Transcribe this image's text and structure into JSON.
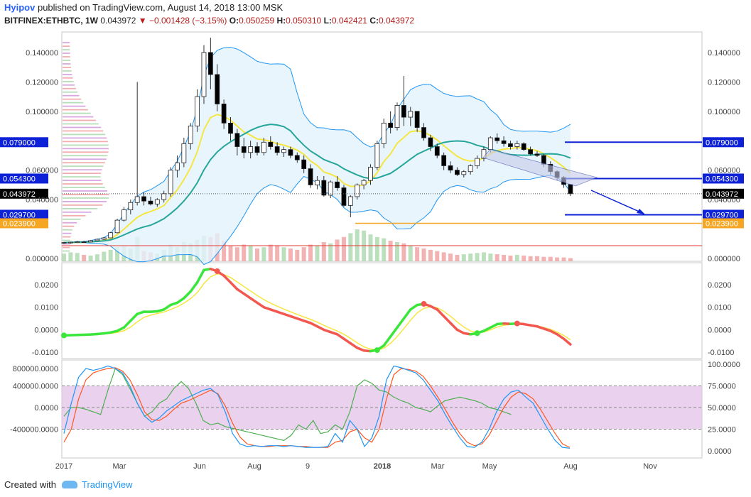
{
  "header": {
    "author": "Hyipov",
    "published": "published on TradingView.com, August 14, 2018 13:00 MSK",
    "symbol": "BITFINEX:ETHBTC, 1W",
    "last": "0.043972",
    "change": "−0.001428 (−3.15%)",
    "o_label": "O:",
    "o": "0.050259",
    "h_label": "H:",
    "h": "0.050310",
    "l_label": "L:",
    "l": "0.042421",
    "c_label": "C:",
    "c": "0.043972"
  },
  "footer": {
    "created": "Created with",
    "brand": "TradingView"
  },
  "colors": {
    "up": "#ffffff",
    "down": "#000000",
    "bb_fill": "#e3f2fd",
    "bb_line": "#2196f3",
    "ema_fast": "#f5e642",
    "ema_slow": "#26a69a",
    "level_blue": "#0d22d6",
    "level_orange": "#f5a623",
    "osc_up": "#39e639",
    "osc_down": "#f2584f",
    "osc_signal": "#f5e642",
    "stoch_band": "#e1bee7",
    "stoch_k": "#2196f3",
    "stoch_d": "#ff5722",
    "stoch_green": "#4caf50"
  },
  "chart_data": [
    {
      "type": "candlestick",
      "x_ticks": [
        "2017",
        "Mar",
        "Jun",
        "Aug",
        "9",
        "2018",
        "Mar",
        "May",
        "Aug",
        "Nov"
      ],
      "y_ticks": [
        "0.000000",
        "0.040000",
        "0.060000",
        "0.100000",
        "0.120000",
        "0.140000"
      ],
      "ylim": [
        0.0,
        0.152
      ],
      "candles": [
        [
          0.0105,
          0.0112,
          0.0098,
          0.0108
        ],
        [
          0.0108,
          0.0114,
          0.01,
          0.011
        ],
        [
          0.011,
          0.0118,
          0.0105,
          0.0113
        ],
        [
          0.0113,
          0.012,
          0.0108,
          0.0112
        ],
        [
          0.0112,
          0.0125,
          0.011,
          0.0121
        ],
        [
          0.0121,
          0.0135,
          0.0118,
          0.013
        ],
        [
          0.013,
          0.0145,
          0.0125,
          0.014
        ],
        [
          0.014,
          0.018,
          0.0138,
          0.0175
        ],
        [
          0.0175,
          0.027,
          0.017,
          0.026
        ],
        [
          0.026,
          0.035,
          0.025,
          0.033
        ],
        [
          0.033,
          0.04,
          0.03,
          0.038
        ],
        [
          0.038,
          0.12,
          0.036,
          0.042
        ],
        [
          0.042,
          0.045,
          0.036,
          0.039
        ],
        [
          0.039,
          0.042,
          0.036,
          0.037
        ],
        [
          0.037,
          0.041,
          0.035,
          0.04
        ],
        [
          0.04,
          0.046,
          0.038,
          0.044
        ],
        [
          0.044,
          0.062,
          0.042,
          0.06
        ],
        [
          0.06,
          0.07,
          0.055,
          0.065
        ],
        [
          0.065,
          0.082,
          0.062,
          0.078
        ],
        [
          0.078,
          0.092,
          0.074,
          0.09
        ],
        [
          0.09,
          0.115,
          0.086,
          0.11
        ],
        [
          0.11,
          0.145,
          0.105,
          0.14
        ],
        [
          0.14,
          0.15,
          0.115,
          0.125
        ],
        [
          0.125,
          0.132,
          0.1,
          0.105
        ],
        [
          0.105,
          0.108,
          0.088,
          0.092
        ],
        [
          0.092,
          0.096,
          0.08,
          0.085
        ],
        [
          0.085,
          0.088,
          0.07,
          0.076
        ],
        [
          0.076,
          0.082,
          0.068,
          0.072
        ],
        [
          0.072,
          0.08,
          0.068,
          0.076
        ],
        [
          0.076,
          0.079,
          0.07,
          0.072
        ],
        [
          0.072,
          0.082,
          0.07,
          0.079
        ],
        [
          0.079,
          0.083,
          0.074,
          0.076
        ],
        [
          0.076,
          0.079,
          0.07,
          0.072
        ],
        [
          0.072,
          0.076,
          0.069,
          0.074
        ],
        [
          0.074,
          0.076,
          0.068,
          0.07
        ],
        [
          0.07,
          0.072,
          0.065,
          0.067
        ],
        [
          0.067,
          0.07,
          0.058,
          0.061
        ],
        [
          0.061,
          0.064,
          0.048,
          0.05
        ],
        [
          0.05,
          0.056,
          0.047,
          0.053
        ],
        [
          0.053,
          0.056,
          0.042,
          0.043
        ],
        [
          0.043,
          0.053,
          0.041,
          0.052
        ],
        [
          0.052,
          0.056,
          0.046,
          0.048
        ],
        [
          0.048,
          0.05,
          0.035,
          0.036
        ],
        [
          0.036,
          0.043,
          0.028,
          0.042
        ],
        [
          0.042,
          0.051,
          0.04,
          0.05
        ],
        [
          0.05,
          0.054,
          0.047,
          0.053
        ],
        [
          0.053,
          0.064,
          0.05,
          0.062
        ],
        [
          0.062,
          0.08,
          0.06,
          0.078
        ],
        [
          0.078,
          0.095,
          0.075,
          0.092
        ],
        [
          0.092,
          0.1,
          0.085,
          0.089
        ],
        [
          0.089,
          0.106,
          0.087,
          0.104
        ],
        [
          0.104,
          0.124,
          0.09,
          0.096
        ],
        [
          0.096,
          0.103,
          0.09,
          0.1
        ],
        [
          0.1,
          0.1,
          0.086,
          0.089
        ],
        [
          0.089,
          0.092,
          0.08,
          0.082
        ],
        [
          0.082,
          0.084,
          0.073,
          0.076
        ],
        [
          0.076,
          0.078,
          0.068,
          0.07
        ],
        [
          0.07,
          0.072,
          0.06,
          0.063
        ],
        [
          0.063,
          0.066,
          0.058,
          0.06
        ],
        [
          0.06,
          0.062,
          0.056,
          0.057
        ],
        [
          0.057,
          0.06,
          0.055,
          0.059
        ],
        [
          0.059,
          0.064,
          0.057,
          0.063
        ],
        [
          0.063,
          0.07,
          0.061,
          0.068
        ],
        [
          0.068,
          0.076,
          0.066,
          0.074
        ],
        [
          0.074,
          0.083,
          0.072,
          0.082
        ],
        [
          0.082,
          0.085,
          0.078,
          0.08
        ],
        [
          0.08,
          0.083,
          0.076,
          0.078
        ],
        [
          0.078,
          0.08,
          0.074,
          0.076
        ],
        [
          0.076,
          0.08,
          0.074,
          0.078
        ],
        [
          0.078,
          0.079,
          0.073,
          0.074
        ],
        [
          0.074,
          0.076,
          0.07,
          0.071
        ],
        [
          0.071,
          0.073,
          0.069,
          0.07
        ],
        [
          0.07,
          0.071,
          0.062,
          0.064
        ],
        [
          0.064,
          0.066,
          0.057,
          0.059
        ],
        [
          0.059,
          0.06,
          0.053,
          0.055
        ],
        [
          0.055,
          0.056,
          0.048,
          0.0503
        ],
        [
          0.0503,
          0.0503,
          0.0424,
          0.044
        ]
      ],
      "volume": [
        12,
        14,
        13,
        10,
        9,
        11,
        15,
        18,
        22,
        24,
        20,
        38,
        16,
        14,
        12,
        18,
        26,
        22,
        30,
        28,
        34,
        40,
        38,
        44,
        32,
        24,
        22,
        26,
        24,
        20,
        22,
        26,
        24,
        22,
        20,
        18,
        22,
        26,
        24,
        30,
        28,
        34,
        38,
        44,
        50,
        48,
        42,
        38,
        36,
        32,
        30,
        28,
        24,
        22,
        20,
        18,
        16,
        14,
        12,
        10,
        11,
        12,
        13,
        14,
        12,
        11,
        10,
        9,
        10,
        9,
        8,
        8,
        7,
        7,
        6,
        6,
        5
      ],
      "levels": [
        {
          "value": "0.079000",
          "v": 0.079,
          "color": "blue"
        },
        {
          "value": "0.054300",
          "v": 0.0543,
          "color": "blue"
        },
        {
          "value": "0.043972",
          "v": 0.044,
          "color": "black"
        },
        {
          "value": "0.029700",
          "v": 0.0297,
          "color": "blue"
        },
        {
          "value": "0.023900",
          "v": 0.0239,
          "color": "orange"
        }
      ]
    },
    {
      "type": "line",
      "name": "oscillator",
      "y_ticks": [
        "0.0200",
        "0.0100",
        "0.0000",
        "-0.0100"
      ],
      "ylim": [
        -0.0115,
        0.0285
      ],
      "values": [
        -0.0025,
        -0.0024,
        -0.0023,
        -0.0022,
        -0.0021,
        -0.0019,
        -0.0016,
        -0.0012,
        -0.0005,
        0.001,
        0.004,
        0.007,
        0.008,
        0.008,
        0.0082,
        0.009,
        0.011,
        0.012,
        0.014,
        0.017,
        0.021,
        0.0265,
        0.027,
        0.026,
        0.024,
        0.021,
        0.018,
        0.016,
        0.014,
        0.012,
        0.01,
        0.009,
        0.008,
        0.007,
        0.006,
        0.005,
        0.004,
        0.003,
        0.0015,
        0.0,
        -0.001,
        -0.002,
        -0.004,
        -0.006,
        -0.008,
        -0.0092,
        -0.0095,
        -0.009,
        -0.007,
        -0.003,
        0.001,
        0.005,
        0.009,
        0.011,
        0.0115,
        0.0105,
        0.009,
        0.006,
        0.003,
        0.0,
        -0.0015,
        -0.002,
        -0.0015,
        -0.0005,
        0.001,
        0.0025,
        0.0028,
        0.0026,
        0.0028,
        0.0025,
        0.002,
        0.0015,
        0.0005,
        -0.0005,
        -0.002,
        -0.004,
        -0.0065
      ],
      "signal": [
        -0.0026,
        -0.0025,
        -0.0024,
        -0.0023,
        -0.0022,
        -0.0021,
        -0.0019,
        -0.0016,
        -0.0012,
        -0.0004,
        0.0012,
        0.0035,
        0.0055,
        0.0065,
        0.0072,
        0.0079,
        0.009,
        0.0102,
        0.0118,
        0.0138,
        0.0165,
        0.0205,
        0.0235,
        0.0248,
        0.0245,
        0.0232,
        0.0212,
        0.0192,
        0.0172,
        0.0152,
        0.0134,
        0.0118,
        0.0105,
        0.0092,
        0.008,
        0.0068,
        0.0057,
        0.0046,
        0.0034,
        0.002,
        0.0007,
        -0.0005,
        -0.002,
        -0.0038,
        -0.0058,
        -0.0075,
        -0.0086,
        -0.0089,
        -0.0082,
        -0.006,
        -0.003,
        0.0005,
        0.0042,
        0.0075,
        0.0095,
        0.0102,
        0.0098,
        0.0082,
        0.006,
        0.0035,
        0.0012,
        -0.0005,
        -0.0012,
        -0.001,
        0.0,
        0.0012,
        0.002,
        0.0024,
        0.0026,
        0.0025,
        0.0022,
        0.0018,
        0.001,
        0.0002,
        -0.001,
        -0.0025,
        -0.0045
      ]
    },
    {
      "type": "line",
      "name": "stochastic",
      "y_ticks_left": [
        "800000.0000",
        "400000.0000",
        "0.0000",
        "-400000.0000"
      ],
      "y_ticks_right": [
        "100.0000",
        "75.0000",
        "50.0000",
        "25.0000",
        "0.0000"
      ],
      "ylim": [
        0,
        100
      ],
      "band": [
        25,
        75
      ],
      "k": [
        20,
        55,
        85,
        95,
        93,
        95,
        98,
        95,
        90,
        75,
        55,
        40,
        33,
        38,
        46,
        52,
        58,
        62,
        66,
        70,
        72,
        65,
        45,
        20,
        8,
        5,
        6,
        5,
        6,
        6,
        5,
        6,
        5,
        4,
        4,
        4,
        5,
        20,
        10,
        35,
        25,
        5,
        15,
        40,
        82,
        98,
        96,
        93,
        90,
        82,
        70,
        58,
        42,
        28,
        15,
        5,
        4,
        10,
        25,
        45,
        60,
        68,
        70,
        62,
        55,
        40,
        25,
        12,
        4,
        3
      ],
      "d": [
        10,
        25,
        60,
        82,
        90,
        93,
        95,
        96,
        92,
        82,
        65,
        45,
        36,
        35,
        40,
        48,
        55,
        58,
        62,
        66,
        70,
        66,
        52,
        32,
        16,
        8,
        6,
        5,
        5,
        6,
        6,
        6,
        5,
        5,
        4,
        4,
        4,
        10,
        12,
        22,
        25,
        15,
        10,
        25,
        60,
        88,
        95,
        94,
        92,
        86,
        75,
        62,
        48,
        33,
        20,
        10,
        6,
        8,
        18,
        34,
        50,
        62,
        68,
        66,
        60,
        48,
        34,
        20,
        8,
        4
      ],
      "g": [
        40,
        50,
        50,
        48,
        45,
        42,
        70,
        95,
        88,
        72,
        55,
        40,
        45,
        55,
        60,
        72,
        80,
        72,
        55,
        35,
        30,
        32,
        28,
        26,
        24,
        22,
        20,
        18,
        16,
        14,
        12,
        18,
        30,
        25,
        35,
        20,
        22,
        30,
        25,
        45,
        75,
        82,
        78,
        70,
        68,
        62,
        58,
        55,
        50,
        48,
        45,
        52,
        58,
        60,
        62,
        60,
        58,
        55,
        50,
        48,
        45,
        42
      ]
    }
  ]
}
